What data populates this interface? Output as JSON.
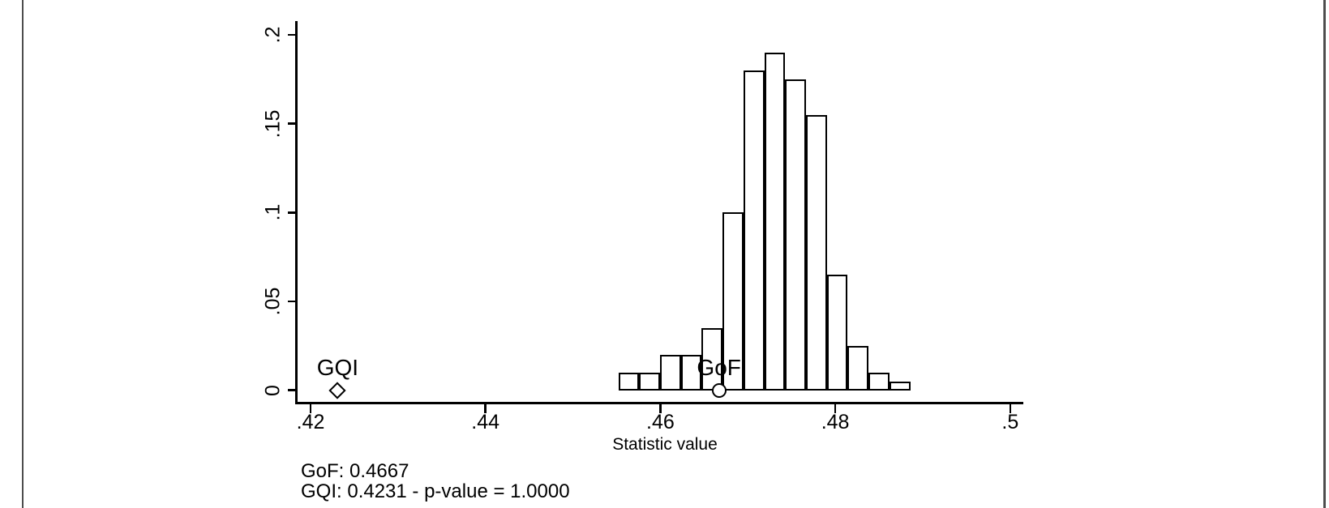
{
  "colors": {
    "ink": "#000000",
    "background": "#ffffff",
    "bar_fill": "#ffffff",
    "bar_border": "#000000",
    "page_rule": "#4d4d4d"
  },
  "chart_data": {
    "type": "bar",
    "subtype": "histogram",
    "title": "",
    "xlabel": "Statistic value",
    "ylabel": "",
    "xlim": [
      0.418,
      0.502
    ],
    "ylim": [
      0,
      0.2
    ],
    "grid": false,
    "legend": "none",
    "x_ticks": [
      {
        "v": 0.42,
        "label": ".42"
      },
      {
        "v": 0.44,
        "label": ".44"
      },
      {
        "v": 0.46,
        "label": ".46"
      },
      {
        "v": 0.48,
        "label": ".48"
      },
      {
        "v": 0.5,
        "label": ".5"
      }
    ],
    "y_ticks": [
      {
        "v": 0,
        "label": "0"
      },
      {
        "v": 0.05,
        "label": ".05"
      },
      {
        "v": 0.1,
        "label": ".1"
      },
      {
        "v": 0.15,
        "label": ".15"
      },
      {
        "v": 0.2,
        "label": ".2"
      }
    ],
    "bars": {
      "bin_start": 0.4552,
      "bin_width": 0.002384,
      "fractions": [
        0.01,
        0.01,
        0.02,
        0.02,
        0.035,
        0.1,
        0.18,
        0.19,
        0.175,
        0.155,
        0.065,
        0.025,
        0.01,
        0.005
      ]
    },
    "markers": [
      {
        "name": "GQI",
        "label": "GQI",
        "shape": "diamond",
        "x": 0.4231,
        "y": 0
      },
      {
        "name": "GoF",
        "label": "GoF",
        "shape": "circle",
        "x": 0.4667,
        "y": 0
      }
    ],
    "notes": [
      "GoF: 0.4667",
      "GQI: 0.4231 - p-value = 1.0000"
    ]
  }
}
